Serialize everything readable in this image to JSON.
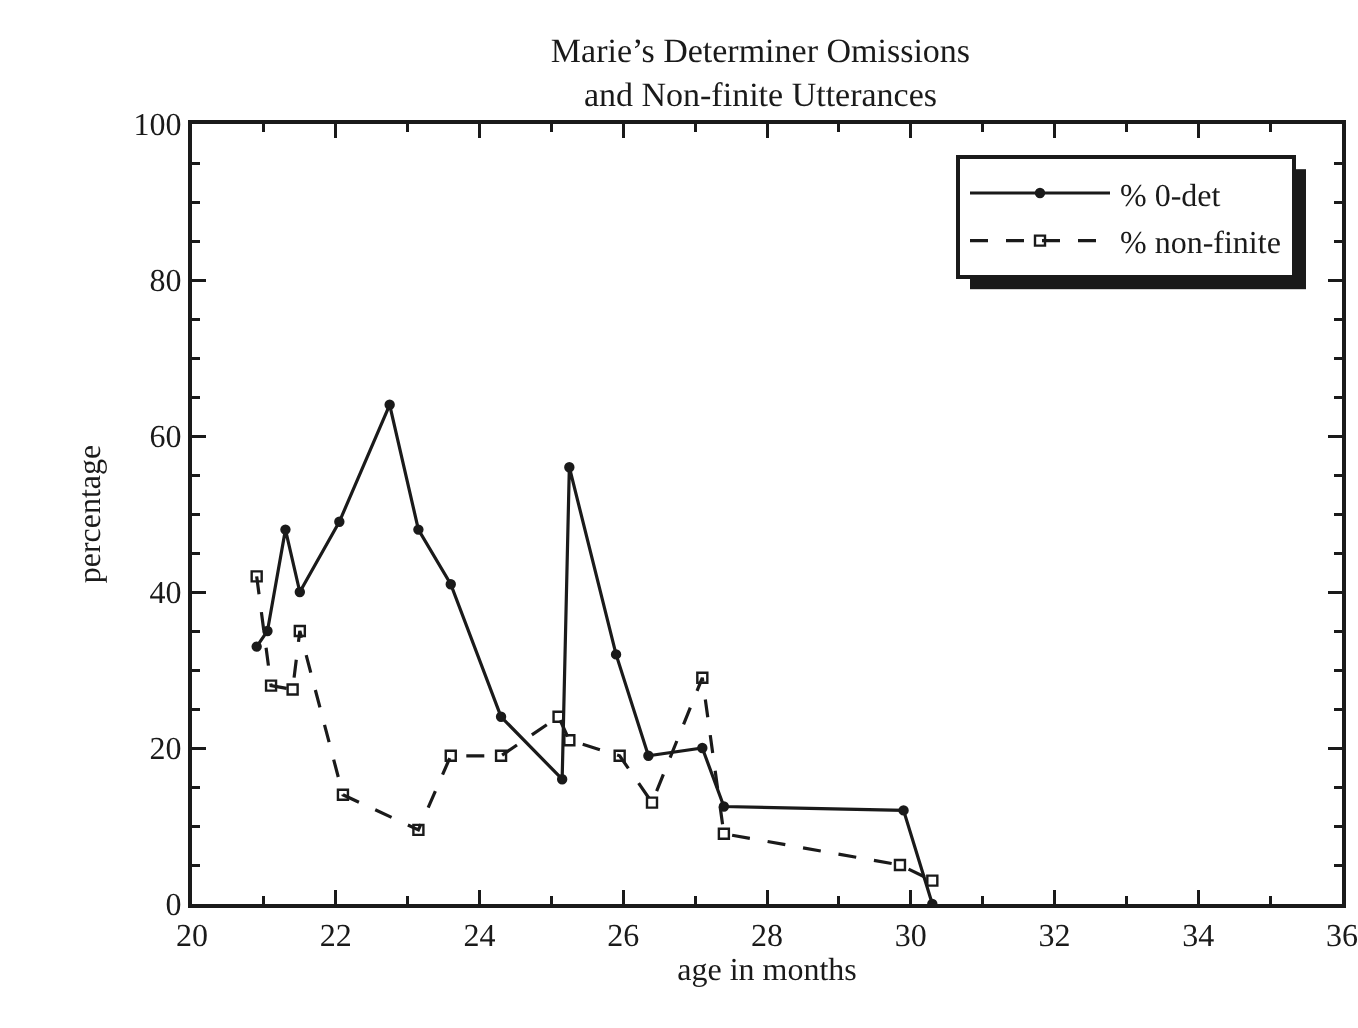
{
  "chart_data": {
    "type": "line",
    "title": "Marie’s Determiner Omissions\nand Non-finite Utterances",
    "xlabel": "age in months",
    "ylabel": "percentage",
    "series": [
      {
        "name": "% 0-det",
        "color": "#1a1a1a",
        "marker": "circle",
        "line_style": "solid",
        "x": [
          20.9,
          21.05,
          21.3,
          21.5,
          22.05,
          22.75,
          23.15,
          23.6,
          24.3,
          25.15,
          25.25,
          25.9,
          26.35,
          27.1,
          27.4,
          29.9,
          30.3
        ],
        "values": [
          33,
          35,
          48,
          40,
          49,
          64,
          48,
          41,
          24,
          16,
          56,
          32,
          19,
          20,
          12.5,
          12,
          0
        ]
      },
      {
        "name": "% non-finite",
        "color": "#1a1a1a",
        "marker": "square",
        "line_style": "dashed",
        "x": [
          20.9,
          21.1,
          21.4,
          21.5,
          22.1,
          23.15,
          23.6,
          24.3,
          25.1,
          25.25,
          25.95,
          26.4,
          27.1,
          27.4,
          29.85,
          30.3
        ],
        "values": [
          42,
          28,
          27.5,
          35,
          14,
          9.5,
          19,
          19,
          24,
          21,
          19,
          13,
          29,
          9,
          5,
          3
        ]
      }
    ],
    "xlim": [
      20,
      36
    ],
    "xticks": [
      20,
      22,
      24,
      26,
      28,
      30,
      32,
      34,
      36
    ],
    "ylim": [
      0,
      100
    ],
    "yticks": [
      0,
      20,
      40,
      60,
      80,
      100
    ],
    "grid": false,
    "legend": "top right"
  }
}
